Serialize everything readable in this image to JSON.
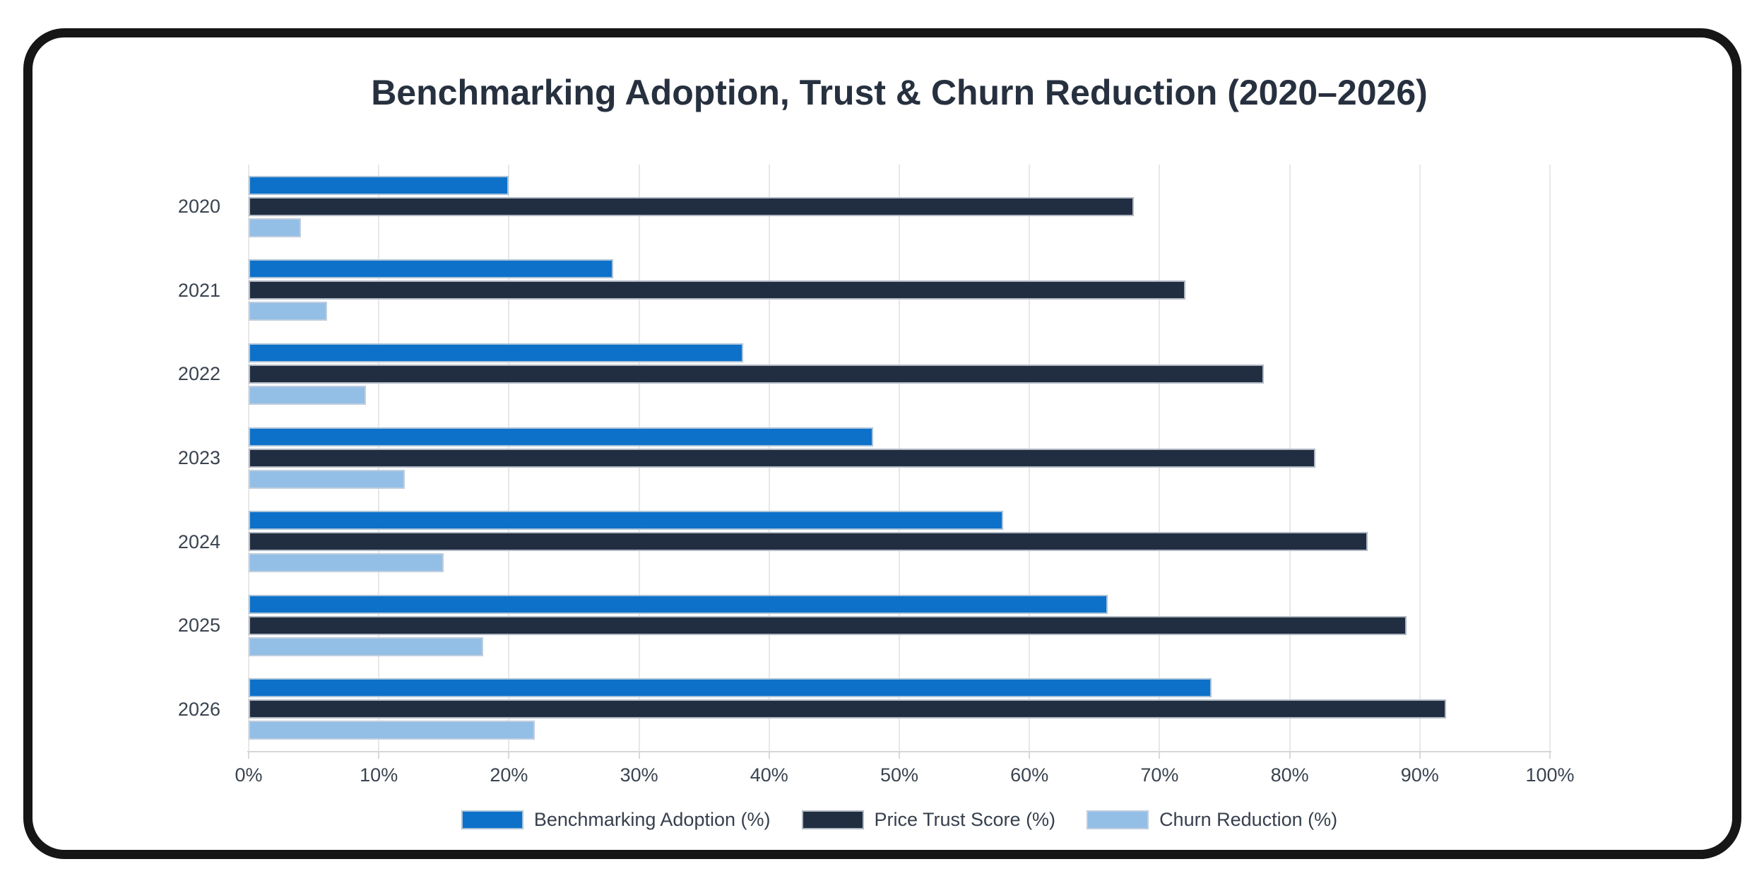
{
  "title": "Benchmarking Adoption, Trust & Churn Reduction (2020–2026)",
  "chart_data": {
    "type": "bar",
    "orientation": "horizontal",
    "title": "Benchmarking Adoption, Trust & Churn Reduction (2020–2026)",
    "categories": [
      "2020",
      "2021",
      "2022",
      "2023",
      "2024",
      "2025",
      "2026"
    ],
    "series": [
      {
        "name": "Benchmarking Adoption (%)",
        "color": "#0d71c9",
        "values": [
          20,
          28,
          38,
          48,
          58,
          66,
          74
        ]
      },
      {
        "name": "Price Trust Score (%)",
        "color": "#212d40",
        "values": [
          68,
          72,
          78,
          82,
          86,
          89,
          92
        ]
      },
      {
        "name": "Churn Reduction (%)",
        "color": "#93bee6",
        "values": [
          4,
          6,
          9,
          12,
          15,
          18,
          22
        ]
      }
    ],
    "x_axis": {
      "min": 0,
      "max": 100,
      "step": 10,
      "tick_labels": [
        "0%",
        "10%",
        "20%",
        "30%",
        "40%",
        "50%",
        "60%",
        "70%",
        "80%",
        "90%",
        "100%"
      ]
    },
    "y_axis_label_side": "left",
    "legend_position": "bottom",
    "grid": true,
    "colors": {
      "grid": "#e8e8e8",
      "axis_line": "#d6d6d6",
      "tick_text": "#3a4350",
      "title_text": "#26303f",
      "bar_border": "#c8d1da",
      "frame": "#161616",
      "background": "#ffffff"
    }
  }
}
